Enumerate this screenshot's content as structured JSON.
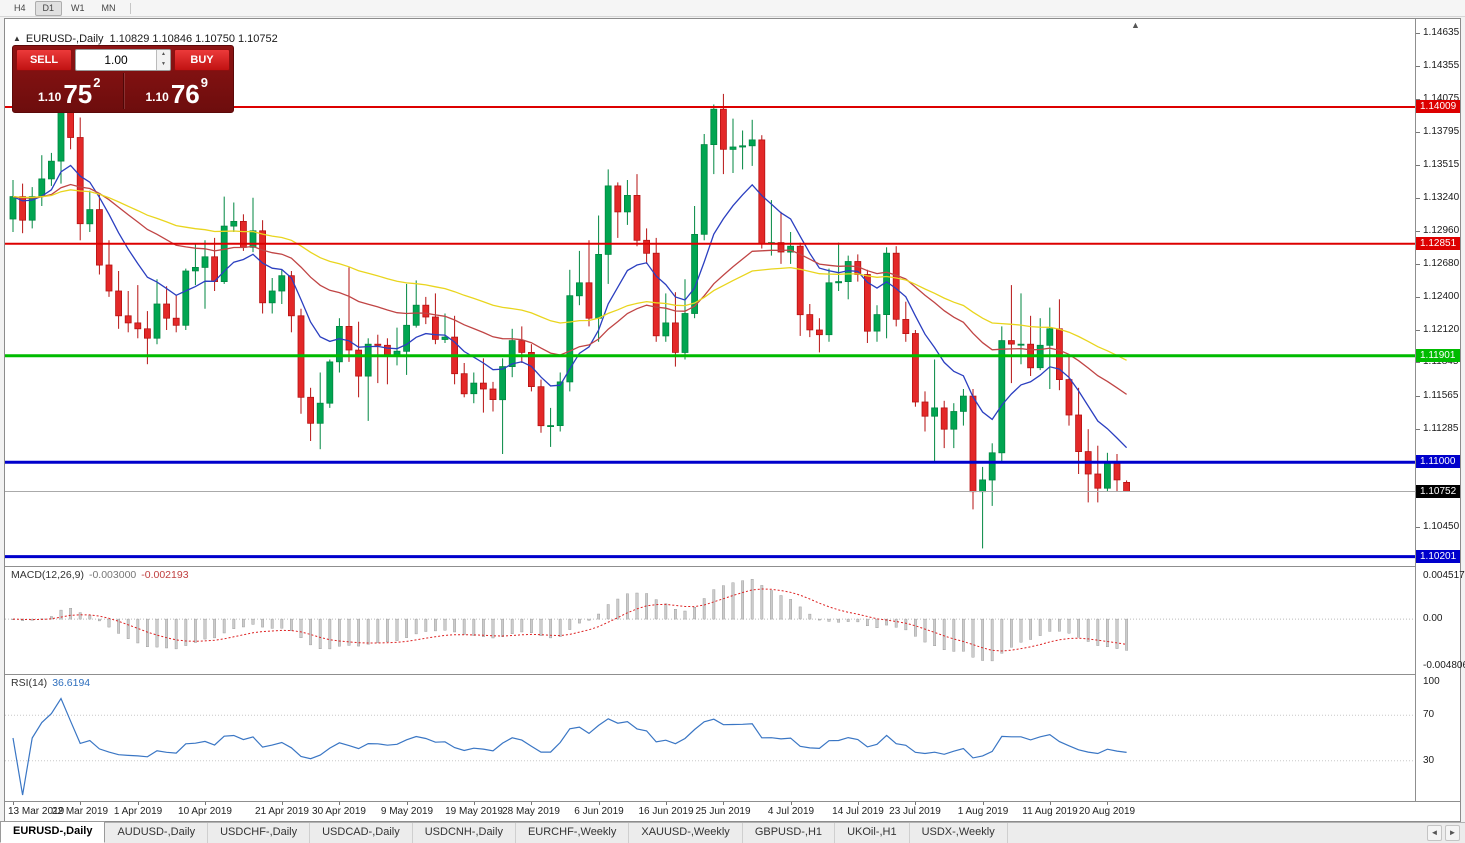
{
  "toolbar": {
    "timeframes": [
      {
        "label": "H4",
        "active": false
      },
      {
        "label": "D1",
        "active": true
      },
      {
        "label": "W1",
        "active": false
      },
      {
        "label": "MN",
        "active": false
      }
    ]
  },
  "chart": {
    "symbol_title": "EURUSD-,Daily",
    "ohlc_text": "1.10829 1.10846 1.10750 1.10752",
    "collapse_icon": "▲",
    "shift_marker_icon": "▲",
    "hlines": [
      {
        "label": "1.14009",
        "price": 1.14009,
        "color": "#dd0000",
        "thickness": 2
      },
      {
        "label": "1.12851",
        "price": 1.12851,
        "color": "#dd0000",
        "thickness": 2
      },
      {
        "label": "1.11901",
        "price": 1.11901,
        "color": "#00bb00",
        "thickness": 3
      },
      {
        "label": "1.11000",
        "price": 1.11,
        "color": "#0000cc",
        "thickness": 3
      },
      {
        "label": "1.10201",
        "price": 1.10201,
        "color": "#0000cc",
        "thickness": 3
      }
    ],
    "current_price": {
      "label": "1.10752",
      "price": 1.10752,
      "bg": "#000000"
    },
    "price_ticks": [
      "1.14635",
      "1.14355",
      "1.14075",
      "1.13795",
      "1.13515",
      "1.13240",
      "1.12960",
      "1.12680",
      "1.12400",
      "1.12120",
      "1.11845",
      "1.11565",
      "1.11285",
      "1.10450"
    ],
    "x_labels": [
      {
        "text": "13 Mar 2019",
        "index": 0
      },
      {
        "text": "22 Mar 2019",
        "index": 7
      },
      {
        "text": "1 Apr 2019",
        "index": 13
      },
      {
        "text": "10 Apr 2019",
        "index": 20
      },
      {
        "text": "21 Apr 2019",
        "index": 28
      },
      {
        "text": "30 Apr 2019",
        "index": 34
      },
      {
        "text": "9 May 2019",
        "index": 41
      },
      {
        "text": "19 May 2019",
        "index": 48
      },
      {
        "text": "28 May 2019",
        "index": 54
      },
      {
        "text": "6 Jun 2019",
        "index": 61
      },
      {
        "text": "16 Jun 2019",
        "index": 68
      },
      {
        "text": "25 Jun 2019",
        "index": 74
      },
      {
        "text": "4 Jul 2019",
        "index": 81
      },
      {
        "text": "14 Jul 2019",
        "index": 88
      },
      {
        "text": "23 Jul 2019",
        "index": 94
      },
      {
        "text": "1 Aug 2019",
        "index": 101
      },
      {
        "text": "11 Aug 2019",
        "index": 108
      },
      {
        "text": "20 Aug 2019",
        "index": 114
      }
    ],
    "ma_lines": [
      {
        "period": 10,
        "color": "#2b3fc0"
      },
      {
        "period": 30,
        "color": "#c04545"
      },
      {
        "period": 55,
        "color": "#e9d51e"
      }
    ],
    "candle_colors": {
      "up_fill": "#00a551",
      "up_stroke": "#008741",
      "down_fill": "#e32828",
      "down_stroke": "#b61212"
    }
  },
  "trade_panel": {
    "sell_label": "SELL",
    "buy_label": "BUY",
    "volume": "1.00",
    "spinner_up_icon": "▲",
    "spinner_down_icon": "▼",
    "sell_price": {
      "prefix": "1.10",
      "big": "75",
      "sup": "2"
    },
    "buy_price": {
      "prefix": "1.10",
      "big": "76",
      "sup": "9"
    }
  },
  "macd": {
    "name": "MACD(12,26,9)",
    "value_main": "-0.003000",
    "value_signal": "-0.002193",
    "axis": [
      "0.004517",
      "0.00",
      "-0.004806"
    ],
    "fast": 12,
    "slow": 26,
    "signal": 9,
    "range_max": 0.004517,
    "range_min": -0.004806,
    "histogram_color": "#cccccc",
    "histogram_stroke": "#949494",
    "signal_color": "#dd2222"
  },
  "rsi": {
    "name": "RSI(14)",
    "value": "36.6194",
    "axis": [
      "100",
      "70",
      "30"
    ],
    "period": 14,
    "levels": [
      70,
      30
    ],
    "line_color": "#3a76c4"
  },
  "tabs": {
    "scroll_left_icon": "◄",
    "scroll_right_icon": "►",
    "items": [
      {
        "label": "EURUSD-,Daily",
        "active": true
      },
      {
        "label": "AUDUSD-,Daily",
        "active": false
      },
      {
        "label": "USDCHF-,Daily",
        "active": false
      },
      {
        "label": "USDCAD-,Daily",
        "active": false
      },
      {
        "label": "USDCNH-,Daily",
        "active": false
      },
      {
        "label": "EURCHF-,Weekly",
        "active": false
      },
      {
        "label": "XAUUSD-,Weekly",
        "active": false
      },
      {
        "label": "GBPUSD-,H1",
        "active": false
      },
      {
        "label": "UKOil-,H1",
        "active": false
      },
      {
        "label": "USDX-,Weekly",
        "active": false
      }
    ]
  },
  "chart_data": {
    "type": "candlestick",
    "symbol": "EURUSD-",
    "timeframe": "Daily",
    "price_range": [
      1.10121,
      1.14754
    ],
    "candles": [
      [
        "2019-03-13",
        1.1306,
        1.1339,
        1.1295,
        1.1325
      ],
      [
        "2019-03-14",
        1.1325,
        1.1336,
        1.1294,
        1.1305
      ],
      [
        "2019-03-15",
        1.1305,
        1.1333,
        1.1298,
        1.1325
      ],
      [
        "2019-03-18",
        1.1325,
        1.136,
        1.1317,
        1.134
      ],
      [
        "2019-03-19",
        1.134,
        1.1362,
        1.1334,
        1.1355
      ],
      [
        "2019-03-20",
        1.1355,
        1.1448,
        1.1336,
        1.1415
      ],
      [
        "2019-03-21",
        1.1415,
        1.1438,
        1.1365,
        1.1375
      ],
      [
        "2019-03-22",
        1.1375,
        1.1392,
        1.1288,
        1.1302
      ],
      [
        "2019-03-25",
        1.1302,
        1.133,
        1.1295,
        1.1314
      ],
      [
        "2019-03-26",
        1.1314,
        1.1327,
        1.1259,
        1.1267
      ],
      [
        "2019-03-27",
        1.1267,
        1.1288,
        1.124,
        1.1245
      ],
      [
        "2019-03-28",
        1.1245,
        1.1262,
        1.1213,
        1.1224
      ],
      [
        "2019-03-29",
        1.1224,
        1.1245,
        1.121,
        1.1218
      ],
      [
        "2019-04-01",
        1.1218,
        1.125,
        1.1205,
        1.1213
      ],
      [
        "2019-04-02",
        1.1213,
        1.1228,
        1.1183,
        1.1205
      ],
      [
        "2019-04-03",
        1.1205,
        1.1255,
        1.12,
        1.1234
      ],
      [
        "2019-04-04",
        1.1234,
        1.1249,
        1.1212,
        1.1222
      ],
      [
        "2019-04-05",
        1.1222,
        1.1242,
        1.121,
        1.1216
      ],
      [
        "2019-04-08",
        1.1216,
        1.1264,
        1.1212,
        1.1262
      ],
      [
        "2019-04-09",
        1.1262,
        1.1285,
        1.125,
        1.1265
      ],
      [
        "2019-04-10",
        1.1265,
        1.1288,
        1.123,
        1.1274
      ],
      [
        "2019-04-11",
        1.1274,
        1.129,
        1.1245,
        1.1253
      ],
      [
        "2019-04-12",
        1.1253,
        1.1325,
        1.1251,
        1.13
      ],
      [
        "2019-04-15",
        1.13,
        1.132,
        1.1295,
        1.1304
      ],
      [
        "2019-04-16",
        1.1304,
        1.131,
        1.1279,
        1.1282
      ],
      [
        "2019-04-17",
        1.1282,
        1.1324,
        1.1278,
        1.1296
      ],
      [
        "2019-04-18",
        1.1296,
        1.1305,
        1.1226,
        1.1235
      ],
      [
        "2019-04-19",
        1.1235,
        1.1256,
        1.1226,
        1.1245
      ],
      [
        "2019-04-22",
        1.1245,
        1.1263,
        1.1234,
        1.1258
      ],
      [
        "2019-04-23",
        1.1258,
        1.1262,
        1.121,
        1.1224
      ],
      [
        "2019-04-24",
        1.1224,
        1.123,
        1.1141,
        1.1155
      ],
      [
        "2019-04-25",
        1.1155,
        1.1163,
        1.1118,
        1.1133
      ],
      [
        "2019-04-26",
        1.1133,
        1.1176,
        1.1111,
        1.115
      ],
      [
        "2019-04-29",
        1.115,
        1.1187,
        1.1146,
        1.1185
      ],
      [
        "2019-04-30",
        1.1185,
        1.1222,
        1.1176,
        1.1215
      ],
      [
        "2019-05-01",
        1.1215,
        1.1265,
        1.1185,
        1.1195
      ],
      [
        "2019-05-02",
        1.1195,
        1.1219,
        1.1155,
        1.1173
      ],
      [
        "2019-05-03",
        1.1173,
        1.1205,
        1.1135,
        1.12
      ],
      [
        "2019-05-06",
        1.12,
        1.1208,
        1.1167,
        1.1199
      ],
      [
        "2019-05-07",
        1.1199,
        1.1205,
        1.1166,
        1.119
      ],
      [
        "2019-05-08",
        1.119,
        1.1214,
        1.1182,
        1.1194
      ],
      [
        "2019-05-09",
        1.1194,
        1.1251,
        1.1174,
        1.1216
      ],
      [
        "2019-05-10",
        1.1216,
        1.1254,
        1.1214,
        1.1233
      ],
      [
        "2019-05-13",
        1.1233,
        1.124,
        1.1217,
        1.1223
      ],
      [
        "2019-05-14",
        1.1223,
        1.1243,
        1.12,
        1.1204
      ],
      [
        "2019-05-15",
        1.1204,
        1.1226,
        1.1201,
        1.1206
      ],
      [
        "2019-05-16",
        1.1206,
        1.1224,
        1.1166,
        1.1175
      ],
      [
        "2019-05-17",
        1.1175,
        1.1184,
        1.1155,
        1.1158
      ],
      [
        "2019-05-20",
        1.1158,
        1.1176,
        1.115,
        1.1167
      ],
      [
        "2019-05-21",
        1.1167,
        1.1188,
        1.1142,
        1.1162
      ],
      [
        "2019-05-22",
        1.1162,
        1.1168,
        1.1143,
        1.1153
      ],
      [
        "2019-05-23",
        1.1153,
        1.1188,
        1.1107,
        1.1181
      ],
      [
        "2019-05-24",
        1.1181,
        1.1213,
        1.1172,
        1.1203
      ],
      [
        "2019-05-27",
        1.1203,
        1.1215,
        1.1184,
        1.1193
      ],
      [
        "2019-05-28",
        1.1193,
        1.12,
        1.116,
        1.1164
      ],
      [
        "2019-05-29",
        1.1164,
        1.117,
        1.1125,
        1.1131
      ],
      [
        "2019-05-30",
        1.1131,
        1.1146,
        1.1113,
        1.1131
      ],
      [
        "2019-05-31",
        1.1131,
        1.1176,
        1.1126,
        1.1168
      ],
      [
        "2019-06-03",
        1.1168,
        1.1263,
        1.116,
        1.1241
      ],
      [
        "2019-06-04",
        1.1241,
        1.1279,
        1.1233,
        1.1252
      ],
      [
        "2019-06-05",
        1.1252,
        1.1288,
        1.1215,
        1.1222
      ],
      [
        "2019-06-06",
        1.1222,
        1.1309,
        1.1202,
        1.1276
      ],
      [
        "2019-06-07",
        1.1276,
        1.1348,
        1.1251,
        1.1334
      ],
      [
        "2019-06-10",
        1.1334,
        1.1337,
        1.129,
        1.1312
      ],
      [
        "2019-06-11",
        1.1312,
        1.1339,
        1.1301,
        1.1326
      ],
      [
        "2019-06-12",
        1.1326,
        1.1344,
        1.1283,
        1.1288
      ],
      [
        "2019-06-13",
        1.1288,
        1.1298,
        1.1268,
        1.1277
      ],
      [
        "2019-06-14",
        1.1277,
        1.129,
        1.1202,
        1.1207
      ],
      [
        "2019-06-17",
        1.1207,
        1.1243,
        1.1202,
        1.1218
      ],
      [
        "2019-06-18",
        1.1218,
        1.1244,
        1.1181,
        1.1193
      ],
      [
        "2019-06-19",
        1.1193,
        1.1255,
        1.1187,
        1.1226
      ],
      [
        "2019-06-20",
        1.1226,
        1.1317,
        1.1222,
        1.1293
      ],
      [
        "2019-06-21",
        1.1293,
        1.1378,
        1.1288,
        1.1369
      ],
      [
        "2019-06-24",
        1.1369,
        1.1403,
        1.1344,
        1.1399
      ],
      [
        "2019-06-25",
        1.1399,
        1.1412,
        1.1344,
        1.1365
      ],
      [
        "2019-06-26",
        1.1365,
        1.1391,
        1.1345,
        1.1367
      ],
      [
        "2019-06-27",
        1.1367,
        1.1381,
        1.1348,
        1.1368
      ],
      [
        "2019-06-28",
        1.1368,
        1.139,
        1.1351,
        1.1373
      ],
      [
        "2019-07-01",
        1.1373,
        1.1377,
        1.1281,
        1.1285
      ],
      [
        "2019-07-02",
        1.1285,
        1.1322,
        1.1275,
        1.1286
      ],
      [
        "2019-07-03",
        1.1286,
        1.1312,
        1.1268,
        1.1278
      ],
      [
        "2019-07-04",
        1.1278,
        1.1295,
        1.1268,
        1.1283
      ],
      [
        "2019-07-05",
        1.1283,
        1.1286,
        1.1207,
        1.1225
      ],
      [
        "2019-07-08",
        1.1225,
        1.1234,
        1.1206,
        1.1212
      ],
      [
        "2019-07-09",
        1.1212,
        1.1222,
        1.1193,
        1.1208
      ],
      [
        "2019-07-10",
        1.1208,
        1.1264,
        1.1202,
        1.1252
      ],
      [
        "2019-07-11",
        1.1252,
        1.1286,
        1.1245,
        1.1253
      ],
      [
        "2019-07-12",
        1.1253,
        1.1275,
        1.1238,
        1.127
      ],
      [
        "2019-07-15",
        1.127,
        1.1276,
        1.1253,
        1.1259
      ],
      [
        "2019-07-16",
        1.1259,
        1.1263,
        1.1201,
        1.1211
      ],
      [
        "2019-07-17",
        1.1211,
        1.1233,
        1.1202,
        1.1225
      ],
      [
        "2019-07-18",
        1.1225,
        1.1282,
        1.1205,
        1.1277
      ],
      [
        "2019-07-19",
        1.1277,
        1.1283,
        1.1215,
        1.1221
      ],
      [
        "2019-07-22",
        1.1221,
        1.1236,
        1.1202,
        1.1209
      ],
      [
        "2019-07-23",
        1.1209,
        1.1212,
        1.1147,
        1.1151
      ],
      [
        "2019-07-24",
        1.1151,
        1.116,
        1.1126,
        1.1139
      ],
      [
        "2019-07-25",
        1.1139,
        1.1187,
        1.1101,
        1.1146
      ],
      [
        "2019-07-26",
        1.1146,
        1.1152,
        1.1112,
        1.1128
      ],
      [
        "2019-07-29",
        1.1128,
        1.115,
        1.1112,
        1.1143
      ],
      [
        "2019-07-30",
        1.1143,
        1.1162,
        1.1131,
        1.1156
      ],
      [
        "2019-07-31",
        1.1156,
        1.1162,
        1.106,
        1.1075
      ],
      [
        "2019-08-01",
        1.1075,
        1.1096,
        1.1027,
        1.1085
      ],
      [
        "2019-08-02",
        1.1085,
        1.1116,
        1.1063,
        1.1108
      ],
      [
        "2019-08-05",
        1.1108,
        1.1215,
        1.1101,
        1.1203
      ],
      [
        "2019-08-06",
        1.1203,
        1.125,
        1.1167,
        1.12
      ],
      [
        "2019-08-07",
        1.12,
        1.1243,
        1.1183,
        1.12
      ],
      [
        "2019-08-08",
        1.12,
        1.1224,
        1.1173,
        1.118
      ],
      [
        "2019-08-09",
        1.118,
        1.1222,
        1.1178,
        1.1199
      ],
      [
        "2019-08-12",
        1.1199,
        1.1231,
        1.1162,
        1.1213
      ],
      [
        "2019-08-13",
        1.1213,
        1.1238,
        1.1161,
        1.117
      ],
      [
        "2019-08-14",
        1.117,
        1.1191,
        1.1131,
        1.114
      ],
      [
        "2019-08-15",
        1.114,
        1.1163,
        1.109,
        1.1109
      ],
      [
        "2019-08-16",
        1.1109,
        1.1128,
        1.1066,
        1.109
      ],
      [
        "2019-08-19",
        1.109,
        1.1114,
        1.1066,
        1.1078
      ],
      [
        "2019-08-20",
        1.1078,
        1.1108,
        1.1075,
        1.1099
      ],
      [
        "2019-08-21",
        1.1099,
        1.1107,
        1.1075,
        1.1085
      ],
      [
        "2019-08-22",
        1.10829,
        1.10846,
        1.1075,
        1.10752
      ]
    ]
  }
}
